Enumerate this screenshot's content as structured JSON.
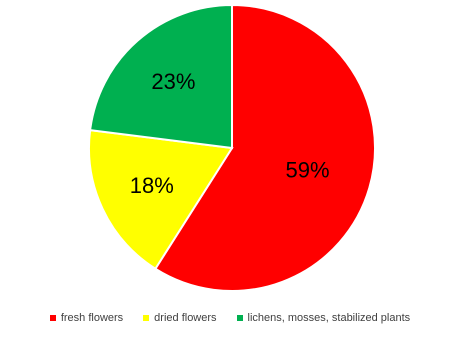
{
  "chart_data": {
    "type": "pie",
    "title": "",
    "categories": [
      "fresh flowers",
      "dried flowers",
      "lichens, mosses, stabilized plants"
    ],
    "values": [
      59,
      18,
      23
    ],
    "labels": [
      "59%",
      "18%",
      "23%"
    ],
    "colors": [
      "#ff0000",
      "#ffff00",
      "#00b050"
    ],
    "legend_position": "bottom",
    "start_angle": "12 o'clock",
    "direction": "clockwise"
  }
}
